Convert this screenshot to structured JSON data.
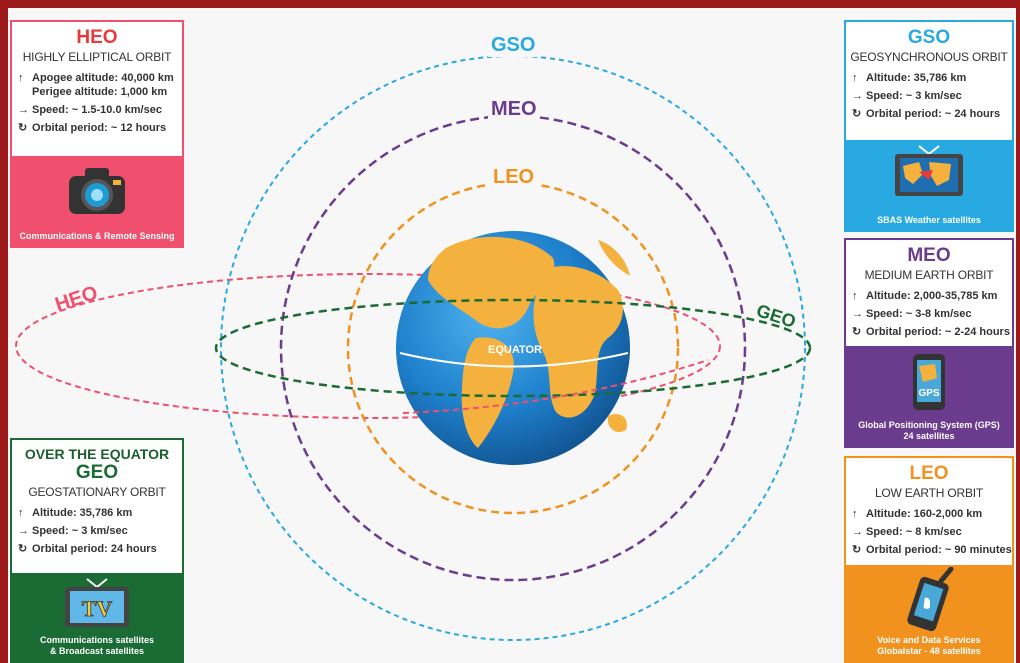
{
  "colors": {
    "heo": "#f0506e",
    "gso": "#29a9e1",
    "meo": "#6b3b8e",
    "leo": "#f2921e",
    "geo": "#1b6b34"
  },
  "orbit_labels": {
    "gso": "GSO",
    "meo": "MEO",
    "leo": "LEO",
    "heo": "HEO",
    "geo": "GEO",
    "equator": "EQUATOR"
  },
  "cards": {
    "heo": {
      "abbr": "HEO",
      "full": "HIGHLY ELLIPTICAL ORBIT",
      "line1": "Apogee altitude: 40,000 km",
      "line1b": "Perigee altitude: 1,000 km",
      "speed": "Speed: ~ 1.5-10.0 km/sec",
      "period": "Orbital period: ~ 12 hours",
      "footer": "Communications & Remote Sensing",
      "icon": "camera-icon"
    },
    "gso": {
      "abbr": "GSO",
      "full": "GEOSYNCHRONOUS ORBIT",
      "altitude": "Altitude: 35,786 km",
      "speed": "Speed: ~ 3 km/sec",
      "period": "Orbital period: ~ 24 hours",
      "footer": "SBAS Weather satellites",
      "icon": "weather-map-tv-icon"
    },
    "meo": {
      "abbr": "MEO",
      "full": "MEDIUM EARTH ORBIT",
      "altitude": "Altitude: 2,000-35,785 km",
      "speed": "Speed: ~ 3-8 km/sec",
      "period": "Orbital period: ~ 2-24 hours",
      "footer1": "Global Positioning System (GPS)",
      "footer2": "24 satellites",
      "icon_text": "GPS",
      "icon": "gps-phone-icon"
    },
    "geo": {
      "over": "OVER THE EQUATOR",
      "abbr": "GEO",
      "full": "GEOSTATIONARY ORBIT",
      "altitude": "Altitude: 35,786 km",
      "speed": "Speed: ~ 3 km/sec",
      "period": "Orbital period: 24 hours",
      "footer1": "Communications satellites",
      "footer2": "& Broadcast satellites",
      "icon_text": "TV",
      "icon": "tv-icon"
    },
    "leo": {
      "abbr": "LEO",
      "full": "LOW EARTH ORBIT",
      "altitude": "Altitude: 160-2,000 km",
      "speed": "Speed: ~ 8 km/sec",
      "period": "Orbital period: ~ 90 minutes",
      "footer1": "Voice and Data Services",
      "footer2": "Globalstar - 48 satellites",
      "icon": "satellite-phone-icon"
    }
  }
}
